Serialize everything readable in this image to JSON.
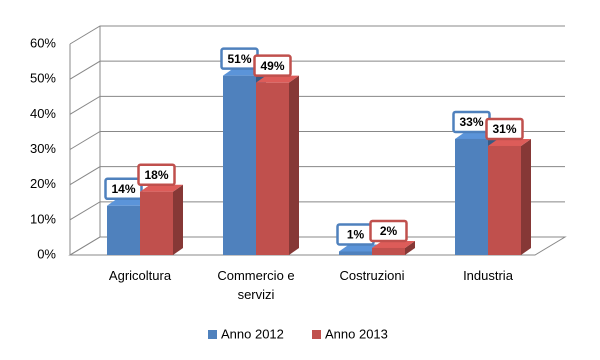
{
  "chart_data": {
    "type": "bar",
    "categories": [
      "Agricoltura",
      "Commercio e servizi",
      "Costruzioni",
      "Industria"
    ],
    "series": [
      {
        "name": "Anno 2012",
        "color": "#4f81bd",
        "values": [
          14,
          51,
          1,
          33
        ],
        "value_labels": [
          "14%",
          "51%",
          "1%",
          "33%"
        ]
      },
      {
        "name": "Anno 2013",
        "color": "#c0504d",
        "values": [
          18,
          49,
          2,
          31
        ],
        "value_labels": [
          "18%",
          "49%",
          "2%",
          "31%"
        ]
      }
    ],
    "ylim": [
      0,
      60
    ],
    "yticks": [
      {
        "value": 0,
        "label": "0%"
      },
      {
        "value": 10,
        "label": "10%"
      },
      {
        "value": 20,
        "label": "20%"
      },
      {
        "value": 30,
        "label": "30%"
      },
      {
        "value": 40,
        "label": "40%"
      },
      {
        "value": 50,
        "label": "50%"
      },
      {
        "value": 60,
        "label": "60%"
      }
    ],
    "grid": true,
    "legend": "bottom"
  }
}
